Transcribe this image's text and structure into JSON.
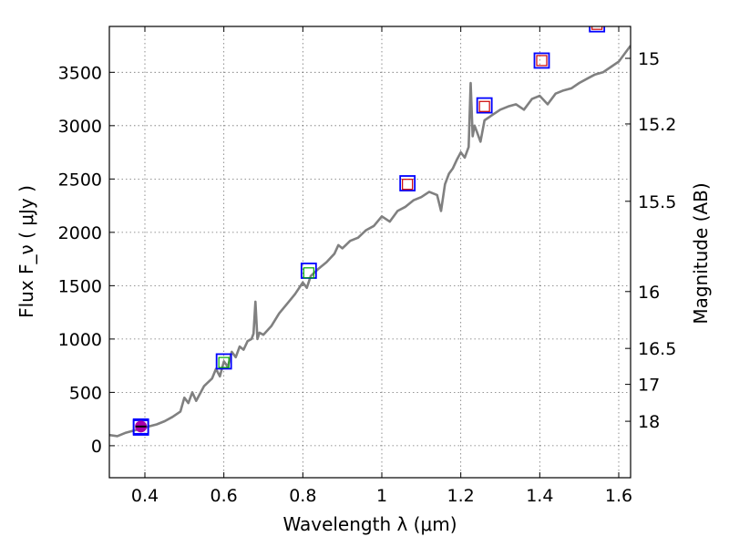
{
  "chart_data": {
    "type": "line",
    "xlabel": "Wavelength  λ (μm)",
    "ylabel": "Flux  F_ν  ( μJy )",
    "ylabel_right": "Magnitude (AB)",
    "xlim": [
      0.31,
      1.63
    ],
    "ylim": [
      -300,
      3930
    ],
    "x_ticks": [
      0.4,
      0.6,
      0.8,
      1.0,
      1.2,
      1.4,
      1.6
    ],
    "x_tick_labels": [
      "0.4",
      "0.6",
      "0.8",
      "1",
      "1.2",
      "1.4",
      "1.6"
    ],
    "y_ticks": [
      0,
      500,
      1000,
      1500,
      2000,
      2500,
      3000,
      3500
    ],
    "y_tick_labels": [
      "0",
      "500",
      "1000",
      "1500",
      "2000",
      "2500",
      "3000",
      "3500"
    ],
    "right_ticks": [
      {
        "flux": 3631,
        "label": "15"
      },
      {
        "flux": 3016,
        "label": "15.2"
      },
      {
        "flux": 2291,
        "label": "15.5"
      },
      {
        "flux": 1445,
        "label": "16"
      },
      {
        "flux": 912,
        "label": "16.5"
      },
      {
        "flux": 575,
        "label": "17"
      },
      {
        "flux": 229,
        "label": "18"
      }
    ],
    "grid": true,
    "colors": {
      "spectrum": "#808080",
      "photometry_box": "#0000ff",
      "model_optical": "#00aa00",
      "model_nir": "#cc0000",
      "uv_marker": "#aa00aa"
    },
    "series": [
      {
        "name": "spectrum",
        "x": [
          0.31,
          0.33,
          0.35,
          0.37,
          0.39,
          0.41,
          0.43,
          0.45,
          0.47,
          0.49,
          0.5,
          0.51,
          0.52,
          0.53,
          0.55,
          0.57,
          0.58,
          0.59,
          0.6,
          0.61,
          0.62,
          0.63,
          0.64,
          0.65,
          0.66,
          0.67,
          0.675,
          0.68,
          0.685,
          0.69,
          0.7,
          0.72,
          0.74,
          0.76,
          0.78,
          0.8,
          0.81,
          0.82,
          0.84,
          0.86,
          0.88,
          0.89,
          0.9,
          0.92,
          0.94,
          0.96,
          0.98,
          1.0,
          1.02,
          1.04,
          1.06,
          1.08,
          1.1,
          1.12,
          1.14,
          1.15,
          1.16,
          1.17,
          1.18,
          1.19,
          1.2,
          1.21,
          1.22,
          1.225,
          1.23,
          1.235,
          1.24,
          1.25,
          1.26,
          1.28,
          1.3,
          1.32,
          1.34,
          1.36,
          1.38,
          1.4,
          1.42,
          1.44,
          1.46,
          1.48,
          1.5,
          1.52,
          1.54,
          1.56,
          1.58,
          1.6,
          1.62,
          1.63
        ],
        "values": [
          100,
          90,
          120,
          140,
          160,
          180,
          200,
          230,
          270,
          320,
          450,
          400,
          500,
          420,
          560,
          630,
          720,
          650,
          790,
          740,
          880,
          830,
          930,
          900,
          980,
          1000,
          1050,
          1350,
          1000,
          1060,
          1040,
          1120,
          1240,
          1330,
          1420,
          1530,
          1480,
          1590,
          1660,
          1720,
          1800,
          1880,
          1850,
          1920,
          1950,
          2020,
          2060,
          2150,
          2100,
          2200,
          2240,
          2300,
          2330,
          2380,
          2350,
          2200,
          2450,
          2550,
          2600,
          2680,
          2750,
          2700,
          2800,
          3400,
          2900,
          3000,
          2950,
          2850,
          3050,
          3100,
          3150,
          3180,
          3200,
          3150,
          3250,
          3280,
          3200,
          3300,
          3330,
          3350,
          3400,
          3440,
          3480,
          3500,
          3550,
          3600,
          3700,
          3750
        ]
      }
    ],
    "photometry": {
      "x": [
        0.39,
        0.6,
        0.815,
        1.065,
        1.26,
        1.405,
        1.545
      ],
      "values": [
        170,
        790,
        1640,
        2460,
        3190,
        3610,
        3950
      ]
    },
    "model_points": [
      {
        "x": 0.6,
        "value": 780,
        "color_key": "model_optical"
      },
      {
        "x": 0.815,
        "value": 1620,
        "color_key": "model_optical"
      },
      {
        "x": 1.065,
        "value": 2450,
        "color_key": "model_nir"
      },
      {
        "x": 1.26,
        "value": 3180,
        "color_key": "model_nir"
      },
      {
        "x": 1.405,
        "value": 3610,
        "color_key": "model_nir"
      },
      {
        "x": 1.545,
        "value": 3950,
        "color_key": "model_nir"
      }
    ],
    "uv_point": {
      "x": 0.39,
      "value": 180
    }
  }
}
